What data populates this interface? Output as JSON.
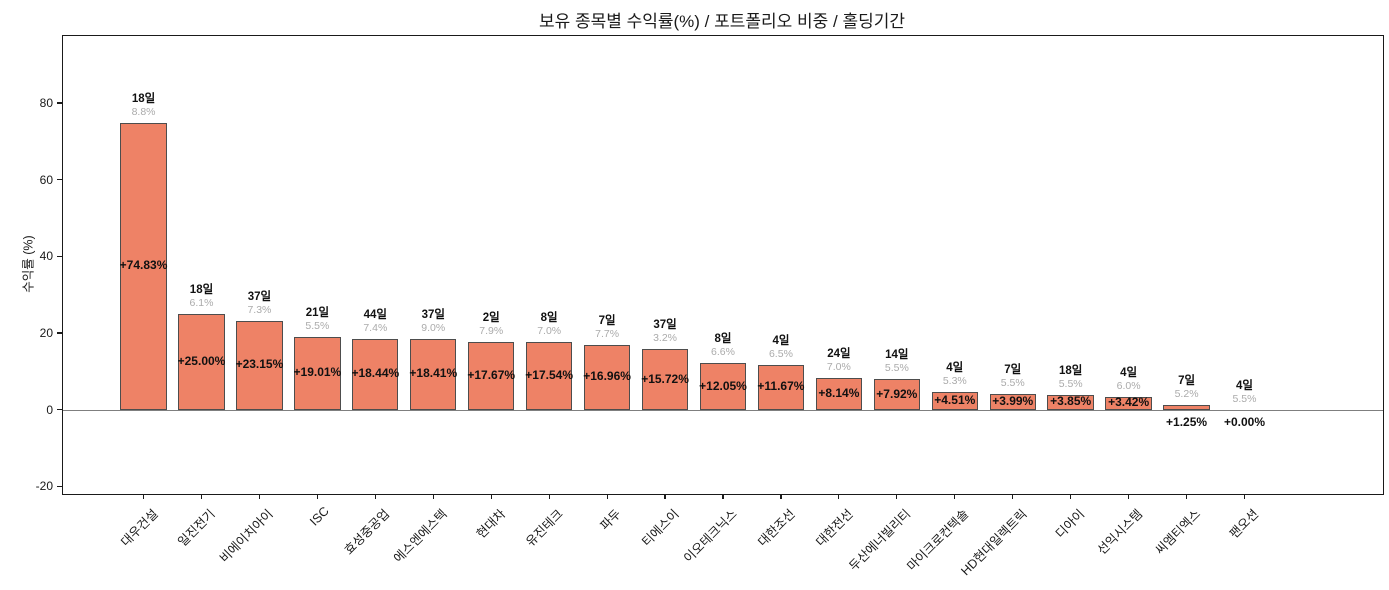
{
  "chart_data": {
    "type": "bar",
    "title": "보유 종목별 수익률(%) / 포트폴리오 비중 / 홀딩기간",
    "xlabel": "",
    "ylabel": "수익률 (%)",
    "ylim": [
      -22,
      97.5
    ],
    "yticks": [
      -20,
      0,
      20,
      40,
      60,
      80
    ],
    "grid": "off",
    "legend": "none",
    "bar_color": "#EE8266",
    "bar_edge_color": "#4d4d4d",
    "zero_line_color": "#7f7f7f",
    "weight_label_color": "#ababab",
    "categories": [
      "대우건설",
      "일진전기",
      "비에이치아이",
      "ISC",
      "효성중공업",
      "에스엔에스텍",
      "현대차",
      "유진테크",
      "파두",
      "티에스이",
      "이오테크닉스",
      "대한조선",
      "대한전선",
      "두산에너빌리티",
      "마이크로컨텍솔",
      "HD현대일렉트릭",
      "디아이",
      "선익시스템",
      "씨엠티엑스",
      "팬오션"
    ],
    "series": [
      {
        "name": "수익률(%)",
        "values": [
          74.83,
          25.0,
          23.15,
          19.01,
          18.44,
          18.41,
          17.67,
          17.54,
          16.96,
          15.72,
          12.05,
          11.67,
          8.14,
          7.92,
          4.51,
          3.99,
          3.85,
          3.42,
          1.25,
          0.0
        ]
      }
    ],
    "return_labels": [
      "+74.83%",
      "+25.00%",
      "+23.15%",
      "+19.01%",
      "+18.44%",
      "+18.41%",
      "+17.67%",
      "+17.54%",
      "+16.96%",
      "+15.72%",
      "+12.05%",
      "+11.67%",
      "+8.14%",
      "+7.92%",
      "+4.51%",
      "+3.99%",
      "+3.85%",
      "+3.42%",
      "+1.25%",
      "+0.00%"
    ],
    "holding_day_labels": [
      "18일",
      "18일",
      "37일",
      "21일",
      "44일",
      "37일",
      "2일",
      "8일",
      "7일",
      "37일",
      "8일",
      "4일",
      "24일",
      "14일",
      "4일",
      "7일",
      "18일",
      "4일",
      "7일",
      "4일"
    ],
    "weight_labels": [
      "8.8%",
      "6.1%",
      "7.3%",
      "5.5%",
      "7.4%",
      "9.0%",
      "7.9%",
      "7.0%",
      "7.7%",
      "3.2%",
      "6.6%",
      "6.5%",
      "7.0%",
      "5.5%",
      "5.3%",
      "5.5%",
      "5.5%",
      "6.0%",
      "5.2%",
      "5.5%"
    ]
  }
}
